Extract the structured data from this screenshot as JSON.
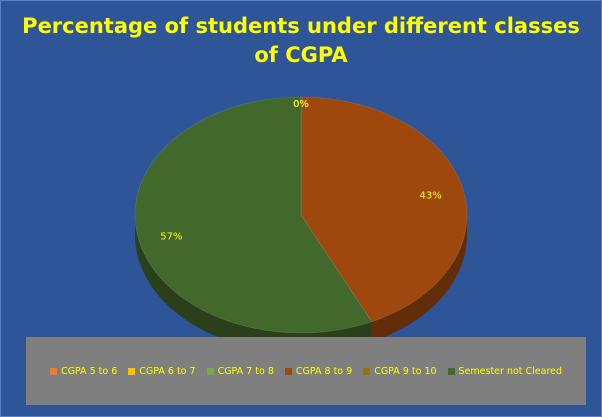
{
  "chart_data": {
    "type": "pie",
    "title": [
      "Percentage of students under different classes",
      "of CGPA"
    ],
    "slices": [
      {
        "name": "CGPA 5 to 6",
        "value": 0,
        "label": "",
        "color": "#ed7d31"
      },
      {
        "name": "CGPA 6 to 7",
        "value": 0,
        "label": "0%",
        "color": "#ffc000"
      },
      {
        "name": "CGPA 7 to 8",
        "value": 0,
        "label": "",
        "color": "#70ad47"
      },
      {
        "name": "CGPA 8 to 9",
        "value": 43,
        "label": "43%",
        "color": "#9e480e"
      },
      {
        "name": "CGPA 9 to 10",
        "value": 0,
        "label": "0%",
        "color": "#997300"
      },
      {
        "name": "Semester not Cleared",
        "value": 57,
        "label": "57%",
        "color": "#43682b"
      }
    ],
    "label_color": "#ffff00",
    "legend_position": "bottom"
  }
}
